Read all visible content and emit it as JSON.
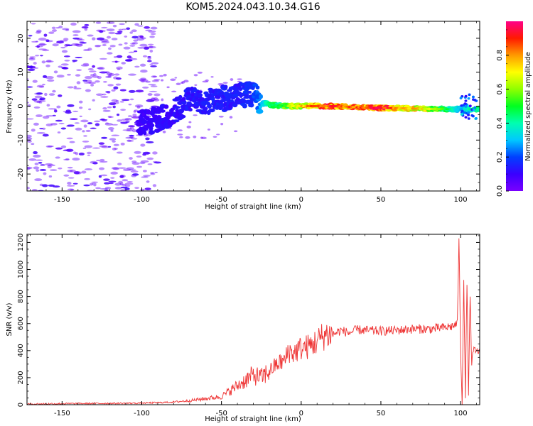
{
  "title": "KOM5.2024.043.10.34.G16",
  "chart_data": [
    {
      "type": "heatmap",
      "panel": "top",
      "xlabel": "Height of straight line (km)",
      "ylabel": "Frequency (Hz)",
      "xlim": [
        -172,
        112
      ],
      "ylim": [
        -25,
        25
      ],
      "xticks": [
        -150,
        -100,
        -50,
        0,
        50,
        100
      ],
      "yticks": [
        -20,
        -10,
        0,
        10,
        20
      ],
      "colorbar": {
        "label": "Normalized spectral amplitude",
        "range": [
          0,
          1
        ],
        "ticks": [
          0.0,
          0.2,
          0.4,
          0.6,
          0.8
        ],
        "colormap": "rainbow (purple→blue→cyan→green→yellow→red→magenta)"
      },
      "signal_track": [
        {
          "x": -100,
          "y": -5.0,
          "amp": 0.1
        },
        {
          "x": -90,
          "y": -4.0,
          "amp": 0.12
        },
        {
          "x": -80,
          "y": -2.0,
          "amp": 0.12
        },
        {
          "x": -70,
          "y": 2.0,
          "amp": 0.14
        },
        {
          "x": -60,
          "y": 1.5,
          "amp": 0.15
        },
        {
          "x": -50,
          "y": 2.0,
          "amp": 0.15
        },
        {
          "x": -40,
          "y": 3.0,
          "amp": 0.15
        },
        {
          "x": -30,
          "y": 3.5,
          "amp": 0.18
        },
        {
          "x": -25,
          "y": 1.0,
          "amp": 0.3
        },
        {
          "x": -20,
          "y": 0.5,
          "amp": 0.45
        },
        {
          "x": -10,
          "y": 0.0,
          "amp": 0.55
        },
        {
          "x": 0,
          "y": 0.0,
          "amp": 0.75
        },
        {
          "x": 10,
          "y": 0.0,
          "amp": 0.85
        },
        {
          "x": 20,
          "y": 0.0,
          "amp": 0.9
        },
        {
          "x": 30,
          "y": -0.2,
          "amp": 0.85
        },
        {
          "x": 40,
          "y": -0.5,
          "amp": 0.85
        },
        {
          "x": 50,
          "y": -0.5,
          "amp": 0.95
        },
        {
          "x": 60,
          "y": -0.6,
          "amp": 0.8
        },
        {
          "x": 70,
          "y": -0.7,
          "amp": 0.75
        },
        {
          "x": 80,
          "y": -0.8,
          "amp": 0.7
        },
        {
          "x": 90,
          "y": -0.9,
          "amp": 0.5
        },
        {
          "x": 100,
          "y": -0.9,
          "amp": 0.3
        },
        {
          "x": 105,
          "y": -0.9,
          "amp": 0.4
        },
        {
          "x": 110,
          "y": -0.9,
          "amp": 0.45
        }
      ]
    },
    {
      "type": "line",
      "panel": "bottom",
      "xlabel": "Height of straight line (km)",
      "ylabel": "SNR (v/v)",
      "xlim": [
        -172,
        112
      ],
      "ylim": [
        0,
        1260
      ],
      "xticks": [
        -150,
        -100,
        -50,
        0,
        50,
        100
      ],
      "yticks": [
        0,
        200,
        400,
        600,
        800,
        1000,
        1200
      ],
      "series": [
        {
          "color": "#ee3333",
          "x": [
            -172,
            -150,
            -120,
            -100,
            -90,
            -80,
            -70,
            -60,
            -50,
            -45,
            -40,
            -35,
            -30,
            -25,
            -20,
            -15,
            -10,
            -8,
            -5,
            0,
            5,
            10,
            15,
            20,
            25,
            30,
            35,
            40,
            50,
            60,
            70,
            80,
            90,
            95,
            98,
            99,
            100,
            101,
            102,
            103,
            104,
            105,
            106,
            107,
            108,
            110,
            112
          ],
          "y": [
            5,
            8,
            10,
            12,
            15,
            20,
            30,
            45,
            60,
            100,
            140,
            180,
            220,
            200,
            250,
            300,
            330,
            400,
            380,
            420,
            430,
            470,
            520,
            520,
            550,
            530,
            555,
            550,
            545,
            550,
            560,
            560,
            570,
            580,
            600,
            1250,
            400,
            20,
            950,
            50,
            900,
            80,
            800,
            300,
            400,
            390,
            400
          ]
        }
      ]
    }
  ]
}
